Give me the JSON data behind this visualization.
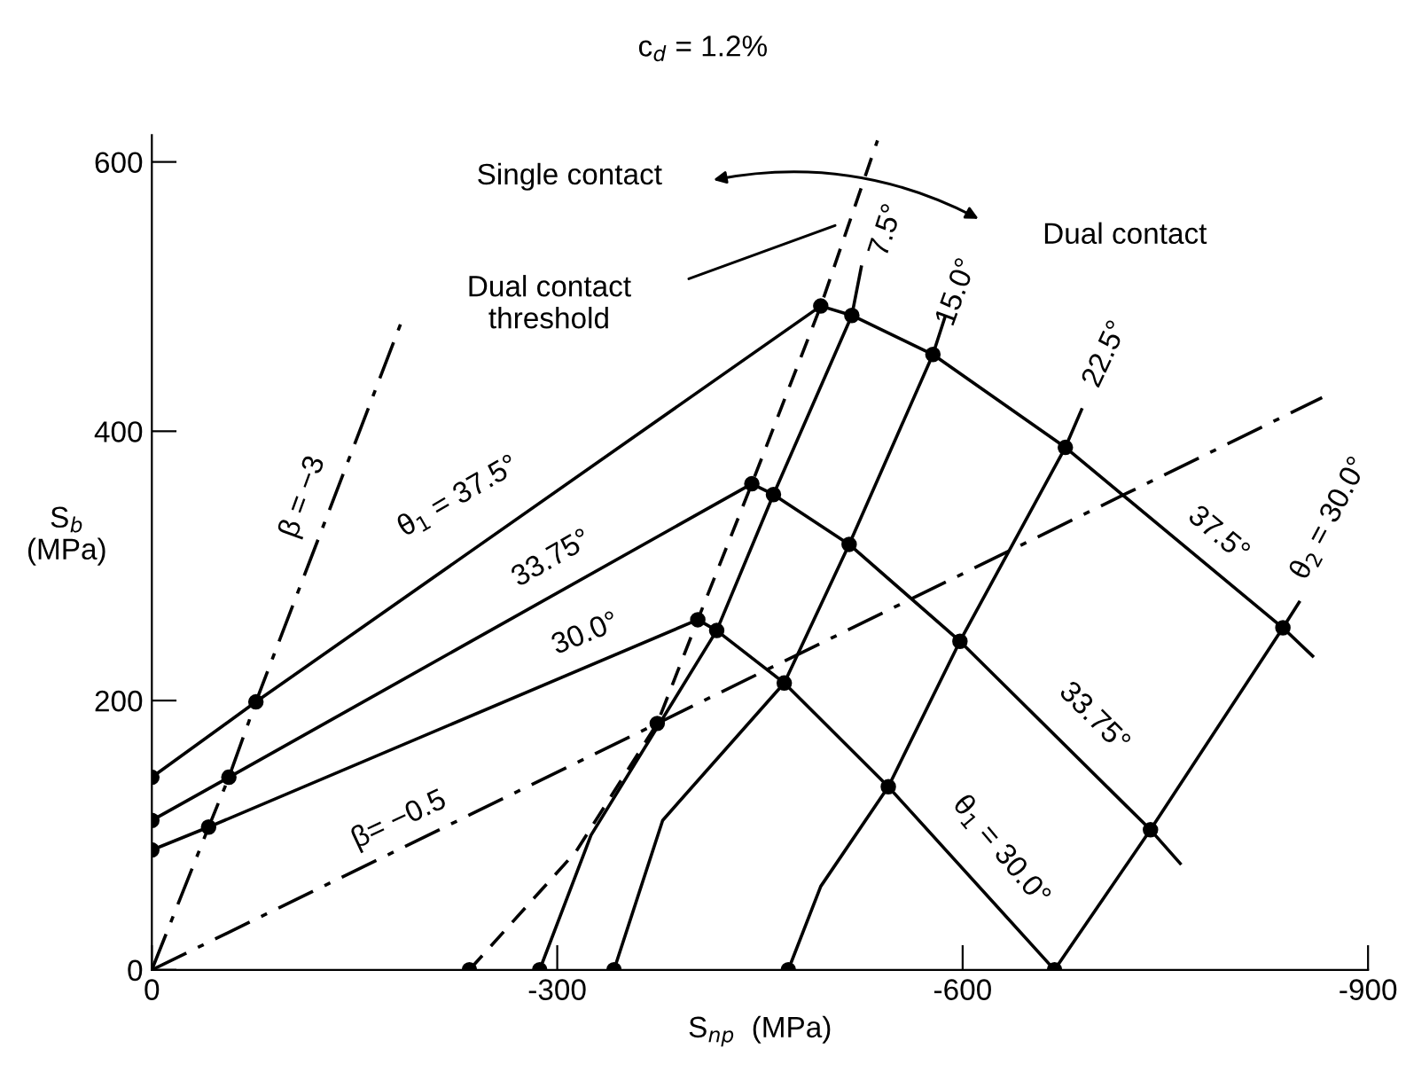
{
  "chart_data": {
    "type": "line",
    "title": "c$_{d}$ = 1.2%",
    "xlabel": "S$_{np}$  (MPa)",
    "ylabel": "S$_{b}$\n(MPa)",
    "xlim": [
      0,
      -900
    ],
    "ylim": [
      0,
      620
    ],
    "xticks": [
      0,
      -300,
      -600,
      -900
    ],
    "yticks": [
      0,
      200,
      400,
      600
    ],
    "grid": false,
    "legend": false,
    "series": [
      {
        "line_style": "dashdot",
        "color": "#000000",
        "x": [
          0,
          -42,
          -57,
          -77,
          -185
        ],
        "values": [
          0,
          106,
          143,
          199,
          482
        ]
      },
      {
        "line_style": "dashdot",
        "color": "#000000",
        "x": [
          0,
          -374,
          -866
        ],
        "values": [
          0,
          183,
          425
        ]
      },
      {
        "line_style": "dashed",
        "color": "#000000",
        "x": [
          -235,
          -314,
          -374,
          -404,
          -444,
          -495,
          -537
        ],
        "values": [
          0,
          88,
          183,
          260,
          361,
          493,
          616
        ]
      },
      {
        "line_style": "solid",
        "color": "#000000",
        "x": [
          0,
          -77,
          -495,
          -518,
          -578,
          -676,
          -837,
          -859
        ],
        "values": [
          143,
          199,
          493,
          486,
          457,
          388,
          254,
          233
        ]
      },
      {
        "line_style": "solid",
        "color": "#000000",
        "x": [
          0,
          -57,
          -444,
          -460,
          -516,
          -598,
          -739,
          -761
        ],
        "values": [
          111,
          143,
          361,
          353,
          316,
          244,
          104,
          79
        ]
      },
      {
        "line_style": "solid",
        "color": "#000000",
        "x": [
          0,
          -42,
          -404,
          -418,
          -468,
          -545,
          -668
        ],
        "values": [
          89,
          106,
          260,
          252,
          213,
          136,
          0
        ]
      },
      {
        "line_style": "solid",
        "color": "#000000",
        "x": [
          -287,
          -325,
          -418,
          -460,
          -518,
          -525
        ],
        "values": [
          0,
          100,
          252,
          353,
          486,
          522
        ]
      },
      {
        "line_style": "solid",
        "color": "#000000",
        "x": [
          -342,
          -378,
          -468,
          -516,
          -578,
          -587
        ],
        "values": [
          0,
          111,
          213,
          316,
          457,
          485
        ]
      },
      {
        "line_style": "solid",
        "color": "#000000",
        "x": [
          -471,
          -495,
          -545,
          -598,
          -676,
          -688
        ],
        "values": [
          0,
          62,
          136,
          244,
          388,
          416
        ]
      },
      {
        "line_style": "solid",
        "color": "#000000",
        "x": [
          -668,
          -739,
          -837,
          -849
        ],
        "values": [
          0,
          104,
          254,
          273
        ]
      },
      {
        "type": "scatter",
        "marker": "circle",
        "color": "#000000",
        "x": [
          0,
          0,
          0,
          -77,
          -57,
          -42,
          -374,
          -404,
          -418,
          -444,
          -460,
          -495,
          -518,
          -578,
          -676,
          -837,
          -516,
          -598,
          -739,
          -468,
          -545,
          -668,
          -471,
          -342,
          -287,
          -235
        ],
        "values": [
          143,
          111,
          89,
          199,
          143,
          106,
          183,
          260,
          252,
          361,
          353,
          493,
          486,
          457,
          388,
          254,
          316,
          244,
          104,
          213,
          136,
          0,
          0,
          0,
          0,
          0
        ]
      }
    ],
    "annotations": [
      "β = −3",
      "θ$_{1}$ = 37.5°",
      "33.75°",
      "30.0°",
      "β= −0.5",
      "7.5°",
      "15.0°",
      "22.5°",
      "37.5°",
      "θ$_{2}$ = 30.0°",
      "33.75°",
      "θ$_{1}$ = 30.0°",
      "Single contact",
      "Dual contact",
      "Dual contact\nthreshold"
    ]
  }
}
